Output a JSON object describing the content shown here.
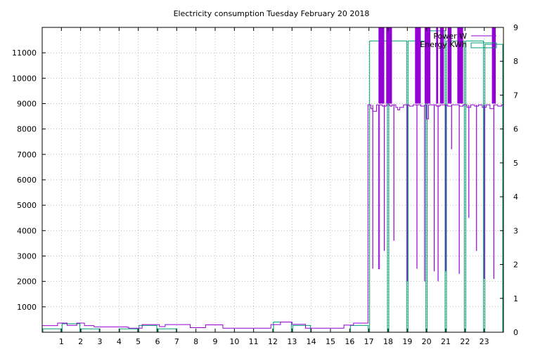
{
  "chart_data": {
    "type": "line",
    "title": "Electricity consumption Tuesday February 20 2018",
    "xlabel": "",
    "ylabel": "",
    "y2label": "",
    "grid": true,
    "legend_position": "top-right",
    "x_range": [
      0,
      24
    ],
    "x_ticks": [
      1,
      2,
      3,
      4,
      5,
      6,
      7,
      8,
      9,
      10,
      11,
      12,
      13,
      14,
      15,
      16,
      17,
      18,
      19,
      20,
      21,
      22,
      23
    ],
    "y_range": [
      0,
      12000
    ],
    "y_ticks": [
      1000,
      2000,
      3000,
      4000,
      5000,
      6000,
      7000,
      8000,
      9000,
      10000,
      11000
    ],
    "y2_range": [
      0,
      9
    ],
    "y2_ticks": [
      0,
      1,
      2,
      3,
      4,
      5,
      6,
      7,
      8,
      9
    ],
    "series": [
      {
        "name": "Power W",
        "axis": "y",
        "color": "#9400d3",
        "style": "steps",
        "points": [
          [
            0,
            260
          ],
          [
            0.3,
            260
          ],
          [
            0.7,
            260
          ],
          [
            0.8,
            360
          ],
          [
            1.2,
            360
          ],
          [
            1.3,
            270
          ],
          [
            1.7,
            270
          ],
          [
            1.8,
            360
          ],
          [
            2.1,
            360
          ],
          [
            2.2,
            260
          ],
          [
            2.6,
            260
          ],
          [
            2.7,
            210
          ],
          [
            3.5,
            210
          ],
          [
            4.4,
            200
          ],
          [
            4.5,
            160
          ],
          [
            5.0,
            160
          ],
          [
            5.2,
            300
          ],
          [
            5.8,
            300
          ],
          [
            6.1,
            220
          ],
          [
            6.3,
            220
          ],
          [
            6.4,
            300
          ],
          [
            7.6,
            300
          ],
          [
            7.7,
            180
          ],
          [
            8.4,
            180
          ],
          [
            8.5,
            290
          ],
          [
            9.3,
            290
          ],
          [
            9.4,
            160
          ],
          [
            11.8,
            160
          ],
          [
            11.9,
            300
          ],
          [
            12.3,
            300
          ],
          [
            12.4,
            400
          ],
          [
            12.9,
            400
          ],
          [
            13.0,
            310
          ],
          [
            13.6,
            310
          ],
          [
            13.7,
            160
          ],
          [
            15.6,
            160
          ],
          [
            15.7,
            280
          ],
          [
            16.1,
            280
          ],
          [
            16.2,
            360
          ],
          [
            16.9,
            360
          ],
          [
            16.95,
            8950
          ],
          [
            17.1,
            8800
          ],
          [
            17.2,
            8700
          ],
          [
            17.4,
            8950
          ],
          [
            17.5,
            2500
          ],
          [
            17.55,
            8950
          ],
          [
            17.7,
            8900
          ],
          [
            17.9,
            8950
          ],
          [
            18.1,
            8900
          ],
          [
            18.2,
            8950
          ],
          [
            18.4,
            8850
          ],
          [
            18.5,
            8750
          ],
          [
            18.6,
            8850
          ],
          [
            18.8,
            8950
          ],
          [
            19.0,
            8950
          ],
          [
            19.1,
            8900
          ],
          [
            19.3,
            8950
          ],
          [
            19.5,
            8950
          ],
          [
            19.7,
            8900
          ],
          [
            19.9,
            8950
          ],
          [
            20.0,
            8400
          ],
          [
            20.1,
            8950
          ],
          [
            20.3,
            8950
          ],
          [
            20.5,
            8900
          ],
          [
            20.7,
            8950
          ],
          [
            20.9,
            8950
          ],
          [
            21.1,
            8900
          ],
          [
            21.3,
            8950
          ],
          [
            21.5,
            8950
          ],
          [
            21.7,
            8900
          ],
          [
            21.9,
            8950
          ],
          [
            22.1,
            8850
          ],
          [
            22.3,
            8950
          ],
          [
            22.5,
            8900
          ],
          [
            22.7,
            8950
          ],
          [
            22.9,
            8850
          ],
          [
            23.1,
            8950
          ],
          [
            23.3,
            8800
          ],
          [
            23.5,
            8950
          ],
          [
            23.7,
            8900
          ],
          [
            23.9,
            8950
          ]
        ],
        "spikes": [
          [
            17.2,
            2500
          ],
          [
            17.8,
            3200
          ],
          [
            18.3,
            3600
          ],
          [
            19.0,
            2000
          ],
          [
            19.5,
            2500
          ],
          [
            19.9,
            2000
          ],
          [
            20.4,
            2400
          ],
          [
            20.6,
            2000
          ],
          [
            21.0,
            2400
          ],
          [
            21.3,
            7200
          ],
          [
            21.7,
            2300
          ],
          [
            22.2,
            4500
          ],
          [
            22.6,
            3200
          ],
          [
            23.0,
            2100
          ],
          [
            23.5,
            2100
          ]
        ],
        "saturated_above_9000": [
          [
            17.5,
            17.8
          ],
          [
            17.9,
            18.2
          ],
          [
            19.4,
            19.7
          ],
          [
            19.9,
            20.2
          ],
          [
            20.5,
            20.6
          ],
          [
            20.7,
            20.9
          ],
          [
            21.1,
            21.3
          ],
          [
            21.6,
            21.9
          ],
          [
            23.4,
            23.6
          ]
        ]
      },
      {
        "name": "Energy KWh",
        "axis": "y2",
        "color": "#009e73",
        "style": "hours",
        "values": [
          0.1,
          0.25,
          0.1,
          0.0,
          0.1,
          0.2,
          0.1,
          0.0,
          0.0,
          0.0,
          0.0,
          0.0,
          0.3,
          0.2,
          0.0,
          0.0,
          0.2,
          8.6,
          8.6,
          8.6,
          8.9,
          8.6,
          8.6,
          8.5
        ]
      }
    ]
  },
  "legend": [
    {
      "label": "Power W",
      "color": "#9400d3"
    },
    {
      "label": "Energy KWh",
      "color": "#009e73"
    }
  ]
}
